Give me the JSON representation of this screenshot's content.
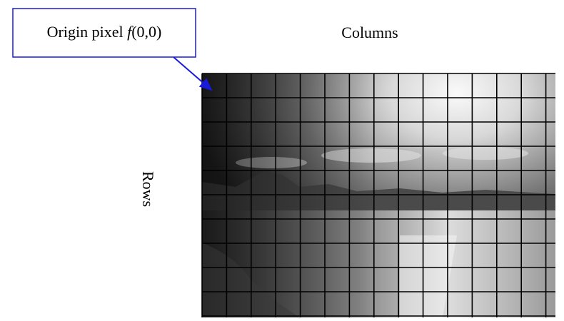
{
  "callout": {
    "prefix": "Origin pixel ",
    "function": "f",
    "args": "(0,0)"
  },
  "columns_label": "Columns",
  "rows_label": "Rows"
}
